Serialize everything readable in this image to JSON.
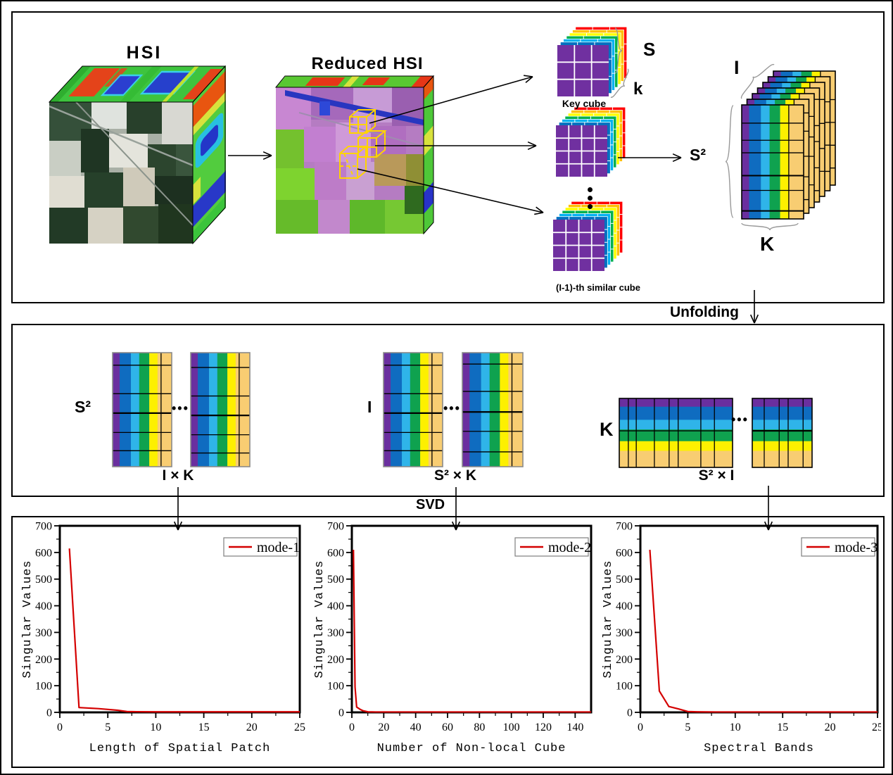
{
  "panel_top": {
    "hsi_title": "HSI",
    "reduced_title": "Reduced HSI",
    "key_cube_label": "Key cube",
    "similar_cube_label": "(I-1)-th similar cube",
    "brace_s_label": "S",
    "brace_k_label": "k",
    "s2_arrow_label": "S²",
    "tensor_depth_label": "I",
    "tensor_width_label": "K"
  },
  "unfolding_label": "Unfolding",
  "svd_label": "SVD",
  "ellipsis": "•••",
  "panel_middle": {
    "groups": [
      {
        "side_label": "S²",
        "dim_label": "I × K"
      },
      {
        "side_label": "I",
        "dim_label": "S² × K"
      },
      {
        "side_label": "K",
        "dim_label": "S² × I"
      }
    ]
  },
  "palette": {
    "matrix_stripes": [
      "#6a2f9f",
      "#0f6cc0",
      "#2fb4e9",
      "#0fa24f",
      "#fdf000",
      "#f8cd72"
    ],
    "cube_front": "#7030a0",
    "cube_back_layers": [
      "#0070c0",
      "#00b0f0",
      "#00b050",
      "#ffff00",
      "#ffc000",
      "#ff0000"
    ],
    "curve_color": "#d40000",
    "brace_color": "#999999",
    "wireframe_color": "#ffd400"
  },
  "chart_data": [
    {
      "type": "line",
      "legend": "mode-1",
      "xlabel": "Length of Spatial Patch",
      "ylabel": "Singular Values",
      "xlim": [
        0,
        25
      ],
      "ylim": [
        0,
        700
      ],
      "xticks": [
        0,
        5,
        10,
        15,
        20,
        25
      ],
      "yticks": [
        0,
        100,
        200,
        300,
        400,
        500,
        600,
        700
      ],
      "x_minor_step": 2.5,
      "y_minor_step": 50,
      "grid": false,
      "legend_position": "top-right",
      "x": [
        1,
        2,
        3,
        4,
        5,
        6,
        7,
        8,
        10,
        12,
        15,
        20,
        25
      ],
      "y": [
        615,
        18,
        16,
        14,
        11,
        8,
        3,
        2.5,
        2,
        2,
        2,
        2,
        2
      ]
    },
    {
      "type": "line",
      "legend": "mode-2",
      "xlabel": "Number of Non-local Cube",
      "ylabel": "Singular Values",
      "xlim": [
        0,
        150
      ],
      "ylim": [
        0,
        700
      ],
      "xticks": [
        0,
        20,
        40,
        60,
        80,
        100,
        120,
        140
      ],
      "yticks": [
        0,
        100,
        200,
        300,
        400,
        500,
        600,
        700
      ],
      "x_minor_step": 10,
      "y_minor_step": 50,
      "grid": false,
      "legend_position": "top-right",
      "x": [
        1,
        2,
        3,
        5,
        7,
        10,
        15,
        20,
        40,
        60,
        80,
        100,
        120,
        150
      ],
      "y": [
        610,
        95,
        20,
        12,
        6,
        2,
        1.5,
        1.5,
        1.5,
        1.5,
        1.5,
        1.5,
        1.5,
        1.5
      ]
    },
    {
      "type": "line",
      "legend": "mode-3",
      "xlabel": "Spectral Bands",
      "ylabel": "Singular Values",
      "xlim": [
        0,
        25
      ],
      "ylim": [
        0,
        700
      ],
      "xticks": [
        0,
        5,
        10,
        15,
        20,
        25
      ],
      "yticks": [
        0,
        100,
        200,
        300,
        400,
        500,
        600,
        700
      ],
      "x_minor_step": 2.5,
      "y_minor_step": 50,
      "grid": false,
      "legend_position": "top-right",
      "x": [
        1,
        2,
        3,
        4,
        5,
        6,
        8,
        10,
        15,
        20,
        25
      ],
      "y": [
        610,
        80,
        22,
        13,
        3,
        2,
        1.5,
        1.5,
        1.5,
        1.5,
        1.5
      ]
    }
  ]
}
